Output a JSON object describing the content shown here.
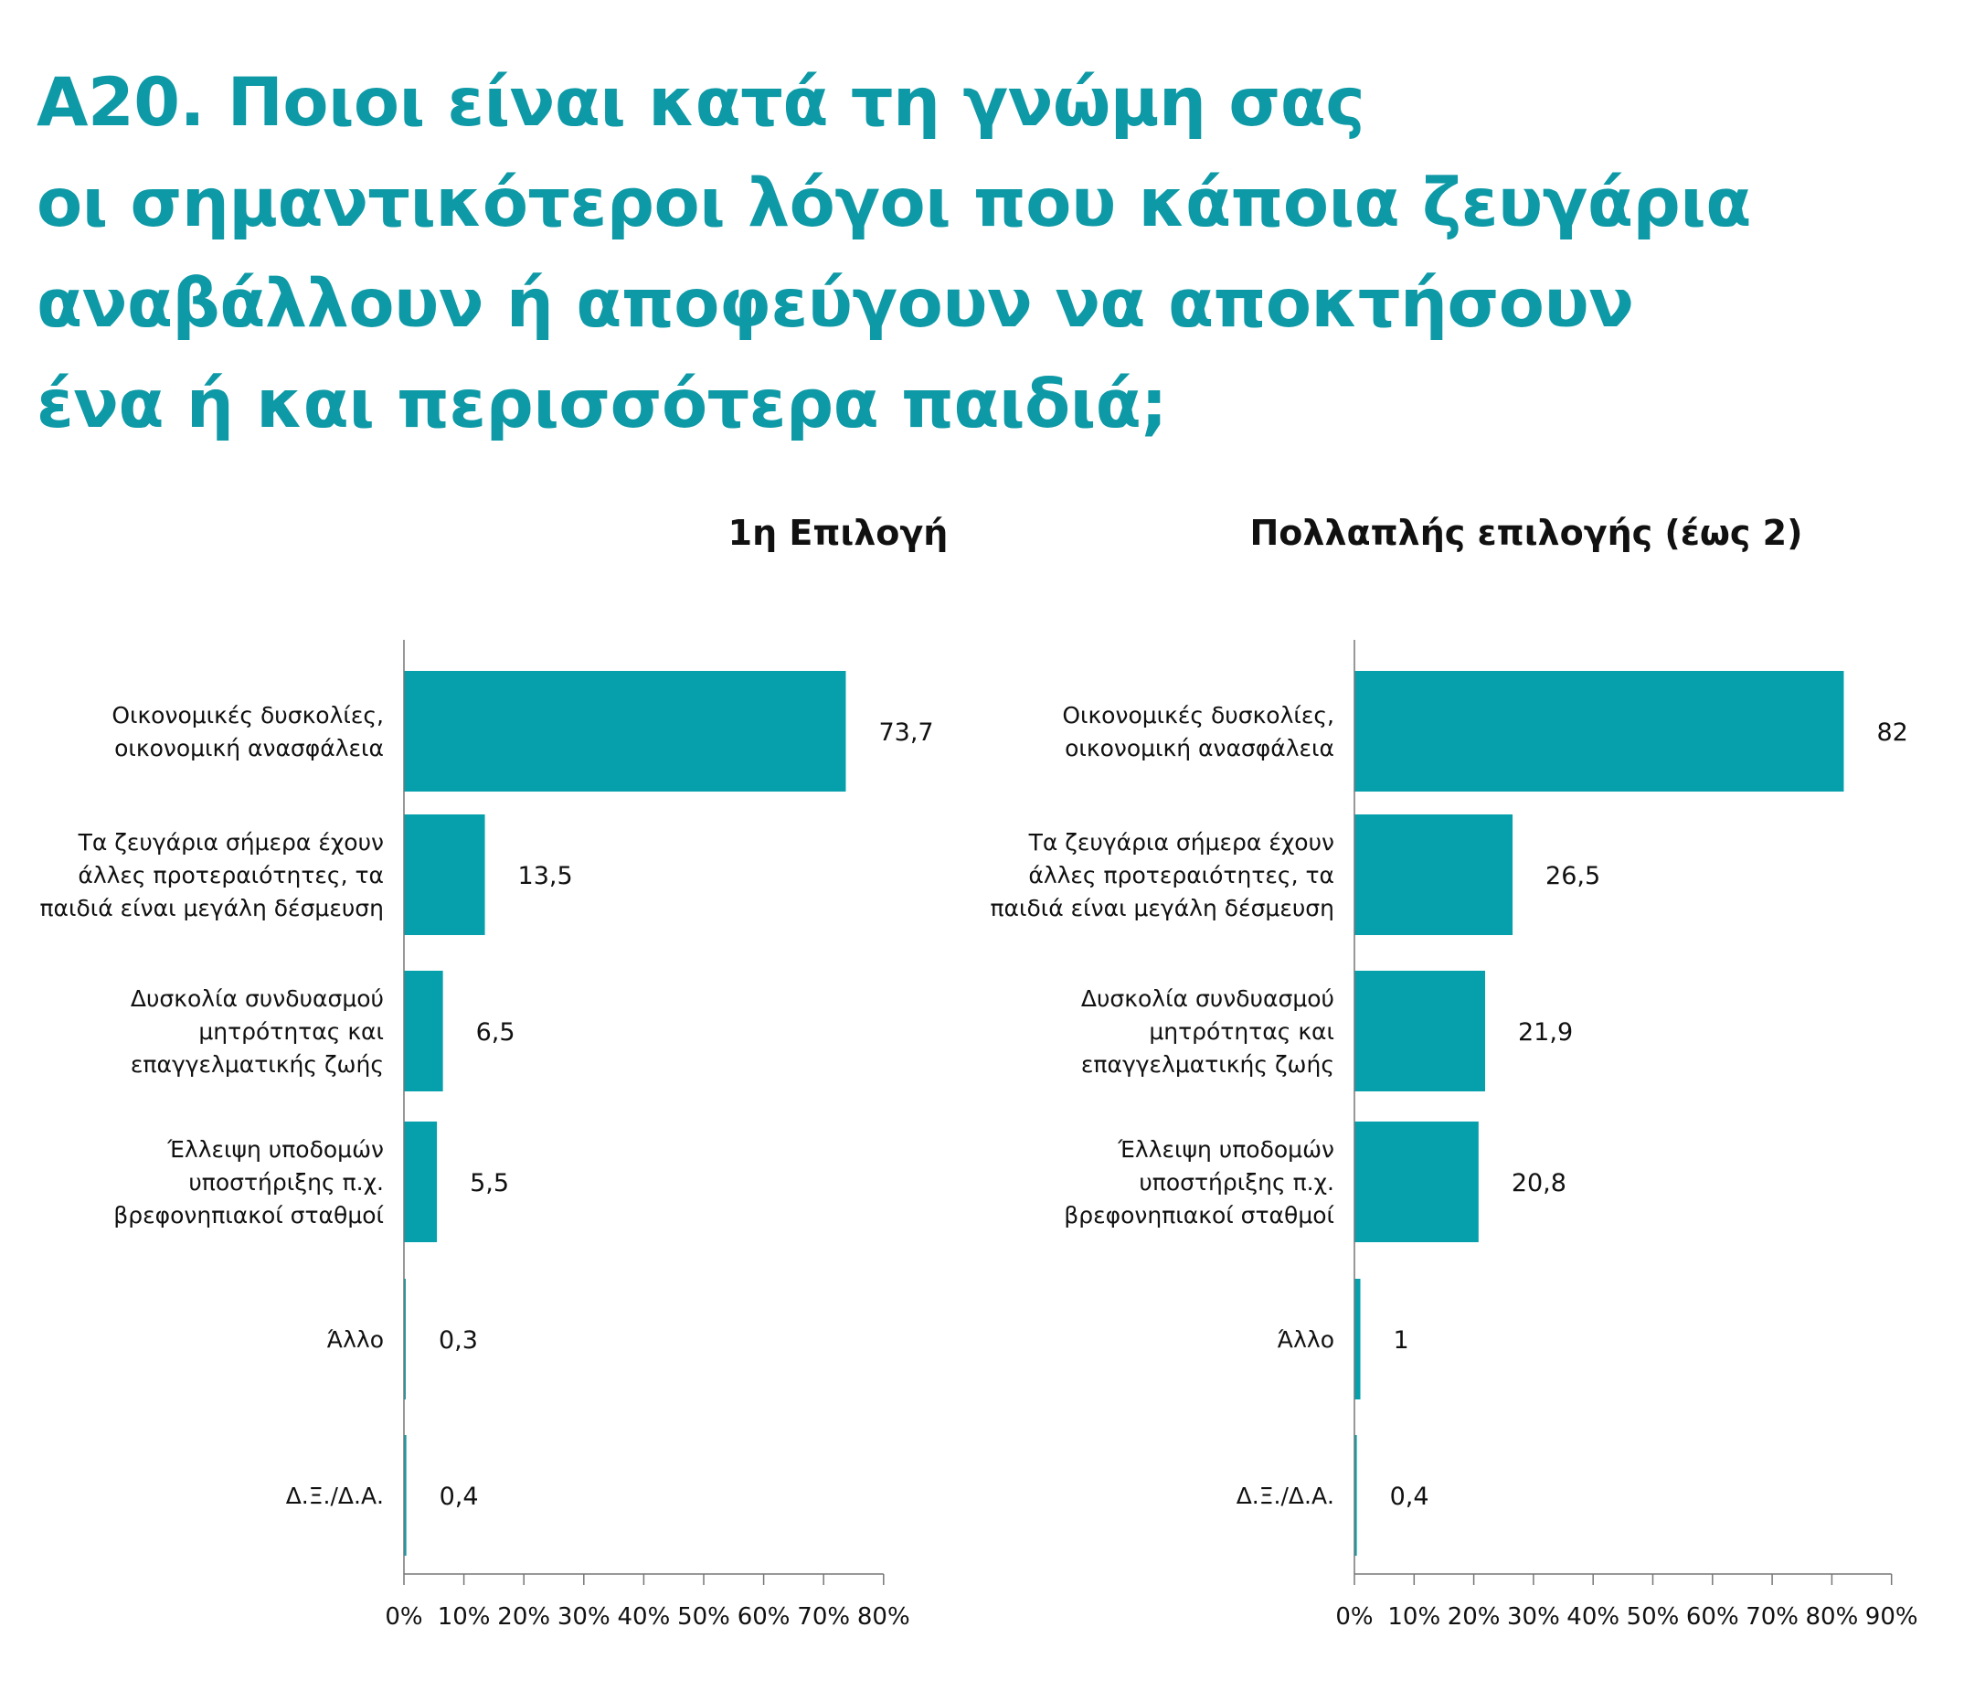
{
  "title_lines": [
    "A20. Ποιοι είναι κατά τη γνώμη σας",
    "οι σημαντικότεροι λόγοι που κάποια ζευγάρια",
    "αναβάλλουν ή αποφεύγουν να αποκτήσουν",
    "ένα ή και περισσότερα παιδιά;"
  ],
  "colors": {
    "title": "#0e99a6",
    "bar": "#06a0ac",
    "axis": "#777777",
    "text": "#111111"
  },
  "chart_data": [
    {
      "type": "bar",
      "orientation": "horizontal",
      "title": "1η Επιλογή",
      "categories": [
        [
          "Οικονομικές δυσκολίες,",
          "οικονομική ανασφάλεια"
        ],
        [
          "Τα ζευγάρια σήμερα έχουν",
          "άλλες προτεραιότητες, τα",
          "παιδιά είναι μεγάλη δέσμευση"
        ],
        [
          "Δυσκολία συνδυασμού",
          "μητρότητας και",
          "επαγγελματικής ζωής"
        ],
        [
          "Έλλειψη υποδομών",
          "υποστήριξης π.χ.",
          "βρεφονηπιακοί σταθμοί"
        ],
        [
          "Άλλο"
        ],
        [
          "Δ.Ξ./Δ.Α."
        ]
      ],
      "values": [
        73.7,
        13.5,
        6.5,
        5.5,
        0.3,
        0.4
      ],
      "value_labels": [
        "73,7",
        "13,5",
        "6,5",
        "5,5",
        "0,3",
        "0,4"
      ],
      "xlim": [
        0,
        80
      ],
      "ticks": [
        0,
        10,
        20,
        30,
        40,
        50,
        60,
        70,
        80
      ],
      "tick_labels": [
        "0%",
        "10%",
        "20%",
        "30%",
        "40%",
        "50%",
        "60%",
        "70%",
        "80%"
      ],
      "grid": false,
      "legend": "none"
    },
    {
      "type": "bar",
      "orientation": "horizontal",
      "title": "Πολλαπλής επιλογής (έως 2)",
      "categories": [
        [
          "Οικονομικές δυσκολίες,",
          "οικονομική ανασφάλεια"
        ],
        [
          "Τα ζευγάρια σήμερα έχουν",
          "άλλες προτεραιότητες, τα",
          "παιδιά είναι μεγάλη δέσμευση"
        ],
        [
          "Δυσκολία συνδυασμού",
          "μητρότητας και",
          "επαγγελματικής ζωής"
        ],
        [
          "Έλλειψη υποδομών",
          "υποστήριξης π.χ.",
          "βρεφονηπιακοί σταθμοί"
        ],
        [
          "Άλλο"
        ],
        [
          "Δ.Ξ./Δ.Α."
        ]
      ],
      "values": [
        82,
        26.5,
        21.9,
        20.8,
        1,
        0.4
      ],
      "value_labels": [
        "82",
        "26,5",
        "21,9",
        "20,8",
        "1",
        "0,4"
      ],
      "xlim": [
        0,
        90
      ],
      "ticks": [
        0,
        10,
        20,
        30,
        40,
        50,
        60,
        70,
        80,
        90
      ],
      "tick_labels": [
        "0%",
        "10%",
        "20%",
        "30%",
        "40%",
        "50%",
        "60%",
        "70%",
        "80%",
        "90%"
      ],
      "grid": false,
      "legend": "none"
    }
  ]
}
